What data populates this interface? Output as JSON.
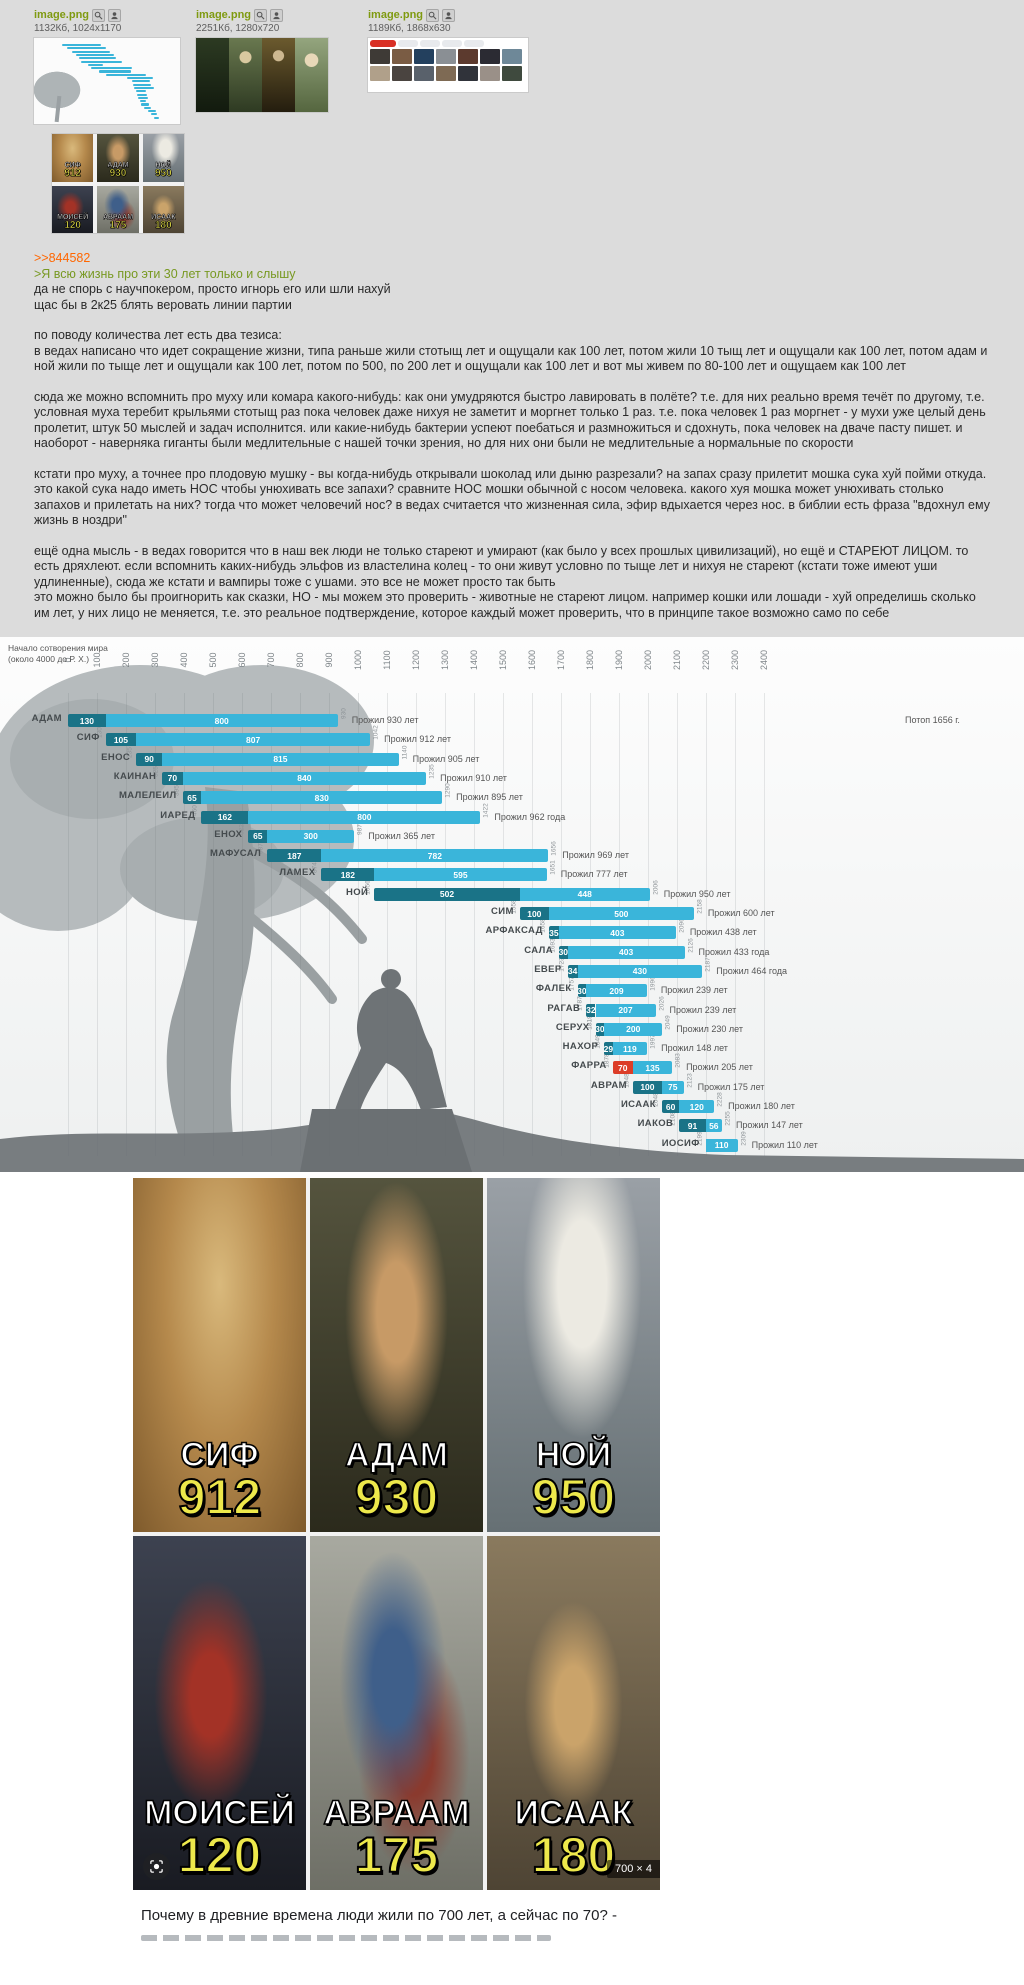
{
  "theme": {
    "post_bg": "#dcdcdc",
    "link_orange": "#ff6600",
    "quote_green": "#789922",
    "filename_green": "#7f9a10",
    "bar_dark": "#1a7387",
    "bar_light": "#3ab5da",
    "bar_red": "#dc3d28",
    "meme_age_yellow": "#ede84b"
  },
  "post": {
    "files": [
      {
        "name": "image.png",
        "size": "1132Кб, 1024x1170"
      },
      {
        "name": "image.png",
        "size": "2251Кб, 1280x720"
      },
      {
        "name": "image.png",
        "size": "1189Кб, 1868x630"
      }
    ],
    "reply_link": ">>844582",
    "quote": ">Я всю жизнь про эти 30 лет только и слышу",
    "paragraphs": [
      "да не спорь с научпокером, просто игнорь его или шли нахуй\nщас бы в 2к25 блять веровать линии партии",
      "по поводу количества лет есть два тезиса:\nв ведах написано что идет сокращение жизни, типа раньше жили стотыщ лет и ощущали как 100 лет, потом жили 10 тыщ лет и ощущали как 100 лет, потом адам и ной жили по тыще лет и ощущали как 100 лет, потом по 500, по 200 лет и ощущали как 100 лет и вот мы живем по 80-100 лет и ощущаем как 100 лет",
      "сюда же можно вспомнить про муху или комара какого-нибудь: как они умудряются быстро лавировать в полёте? т.е. для них реально время течёт по другому, т.е. условная муха теребит крыльями стотыщ раз пока человек даже нихуя не заметит и моргнет только 1 раз. т.е. пока человек 1 раз моргнет - у мухи уже целый день пролетит, штук 50 мыслей и задач исполнится. или какие-нибудь бактерии успеют поебаться и размножиться и сдохнуть, пока человек на дваче пасту пишет. и наоборот - наверняка гиганты были медлительные с нашей точки зрения, но для них они были не медлительные а нормальные по скорости",
      "кстати про муху, а точнее про плодовую мушку - вы когда-нибудь открывали шоколад или дыню разрезали? на запах сразу прилетит мошка сука хуй пойми откуда. это какой сука надо иметь НОС чтобы унюхивать все запахи? сравните НОС мошки обычной с носом человека. какого хуя мошка может унюхивать столько запахов и прилетать на них? тогда что может человечий нос? в ведах считается что жизненная сила, эфир вдыхается через нос. в библии есть фраза \"вдохнул ему жизнь в ноздри\"",
      "ещё одна мысль - в ведах говорится что в наш век люди не только стареют и умирают (как было у всех прошлых цивилизаций), но ещё и СТАРЕЮТ ЛИЦОМ. то есть дряхлеют. если вспомнить каких-нибудь эльфов из властелина колец - то они живут условно по тыще лет и нихуя не стареют (кстати тоже имеют уши удлиненные), сюда же кстати и вампиры тоже с ушами. это все не может просто так быть\nэто можно было бы проигнорить как сказки, НО - мы можем это проверить - животные не стареют лицом. например кошки или лошади - хуй определишь сколько им лет, у них лицо не меняется, т.е. это реальное подтверждение, которое каждый может проверить, что в принципе такое возможно само по себе"
    ]
  },
  "chart_data": {
    "type": "bar",
    "title": "Начало сотворения мира",
    "subtitle": "(около 4000 до Р. Х.)",
    "x_axis": {
      "min": 0,
      "max": 2400,
      "tick_step": 100
    },
    "annotation": {
      "text": "Потоп 1656 г.",
      "row": "АДАМ"
    },
    "legend_position": "none",
    "grid": true,
    "rows": [
      {
        "name": "АДАМ",
        "birth": 0,
        "seg1": 130,
        "seg2": 800,
        "death": 930,
        "label": "Прожил 930 лет"
      },
      {
        "name": "СИФ",
        "birth": 130,
        "seg1": 105,
        "seg2": 807,
        "death": 1042,
        "label": "Прожил 912 лет"
      },
      {
        "name": "ЕНОС",
        "birth": 235,
        "seg1": 90,
        "seg2": 815,
        "death": 1140,
        "label": "Прожил 905 лет"
      },
      {
        "name": "КАИНАН",
        "birth": 325,
        "seg1": 70,
        "seg2": 840,
        "death": 1235,
        "label": "Прожил 910 лет"
      },
      {
        "name": "МАЛЕЛЕИЛ",
        "birth": 395,
        "seg1": 65,
        "seg2": 830,
        "death": 1290,
        "label": "Прожил 895 лет"
      },
      {
        "name": "ИАРЕД",
        "birth": 460,
        "seg1": 162,
        "seg2": 800,
        "death": 1422,
        "label": "Прожил 962 года"
      },
      {
        "name": "ЕНОХ",
        "birth": 622,
        "seg1": 65,
        "seg2": 300,
        "death": 987,
        "label": "Прожил 365 лет"
      },
      {
        "name": "МАФУСАЛ",
        "birth": 687,
        "seg1": 187,
        "seg2": 782,
        "death": 1656,
        "label": "Прожил 969 лет"
      },
      {
        "name": "ЛАМЕХ",
        "birth": 874,
        "seg1": 182,
        "seg2": 595,
        "death": 1651,
        "label": "Прожил 777 лет"
      },
      {
        "name": "НОЙ",
        "birth": 1056,
        "seg1": 502,
        "seg2": 448,
        "death": 2006,
        "label": "Прожил 950 лет"
      },
      {
        "name": "СИМ",
        "birth": 1558,
        "seg1": 100,
        "seg2": 500,
        "death": 2158,
        "label": "Прожил 600 лет"
      },
      {
        "name": "АРФАКСАД",
        "birth": 1658,
        "seg1": 35,
        "seg2": 403,
        "death": 2096,
        "label": "Прожил 438 лет"
      },
      {
        "name": "САЛА",
        "birth": 1693,
        "seg1": 30,
        "seg2": 403,
        "death": 2126,
        "label": "Прожил 433 года"
      },
      {
        "name": "ЕВЕР",
        "birth": 1723,
        "seg1": 34,
        "seg2": 430,
        "death": 2187,
        "label": "Прожил 464 года"
      },
      {
        "name": "ФАЛЕК",
        "birth": 1757,
        "seg1": 30,
        "seg2": 209,
        "death": 1996,
        "label": "Прожил 239 лет"
      },
      {
        "name": "РАГАВ",
        "birth": 1787,
        "seg1": 32,
        "seg2": 207,
        "death": 2026,
        "label": "Прожил 239 лет"
      },
      {
        "name": "СЕРУХ",
        "birth": 1819,
        "seg1": 30,
        "seg2": 200,
        "death": 2049,
        "label": "Прожил 230 лет"
      },
      {
        "name": "НАХОР",
        "birth": 1849,
        "seg1": 29,
        "seg2": 119,
        "death": 1997,
        "label": "Прожил 148 лет"
      },
      {
        "name": "ФАРРА",
        "birth": 1878,
        "seg1": 70,
        "seg2": 135,
        "death": 2083,
        "label": "Прожил 205 лет",
        "seg1_red": true
      },
      {
        "name": "АВРАМ",
        "birth": 1948,
        "seg1": 100,
        "seg2": 75,
        "death": 2123,
        "label": "Прожил 175 лет"
      },
      {
        "name": "ИСААК",
        "birth": 2048,
        "seg1": 60,
        "seg2": 120,
        "death": 2228,
        "label": "Прожил 180 лет"
      },
      {
        "name": "ИАКОВ",
        "birth": 2108,
        "seg1": 91,
        "seg2": 56,
        "death": 2255,
        "label": "Прожил 147 лет"
      },
      {
        "name": "ИОСИФ",
        "birth": 2199,
        "seg1": null,
        "seg2": 110,
        "death": 2309,
        "label": "Прожил 110 лет"
      }
    ]
  },
  "meme": {
    "panels": [
      {
        "name": "СИФ",
        "age": "912"
      },
      {
        "name": "АДАМ",
        "age": "930"
      },
      {
        "name": "НОЙ",
        "age": "950"
      },
      {
        "name": "МОИСЕЙ",
        "age": "120"
      },
      {
        "name": "АВРААМ",
        "age": "175"
      },
      {
        "name": "ИСААК",
        "age": "180"
      }
    ],
    "badge": "700 × 4"
  },
  "thumbnails": {
    "google_palette": [
      "#3e3a36",
      "#7a5c44",
      "#23405e",
      "#8a8f94",
      "#5c3a2e",
      "#2b2b33",
      "#6e8898",
      "#b0a08a",
      "#4a4440",
      "#59616b",
      "#7e6a54",
      "#30333a",
      "#9a9088",
      "#3f4a3e"
    ]
  },
  "caption": {
    "line1": "Почему в древние времена люди жили по 700 лет, а сейчас по 70? -"
  }
}
